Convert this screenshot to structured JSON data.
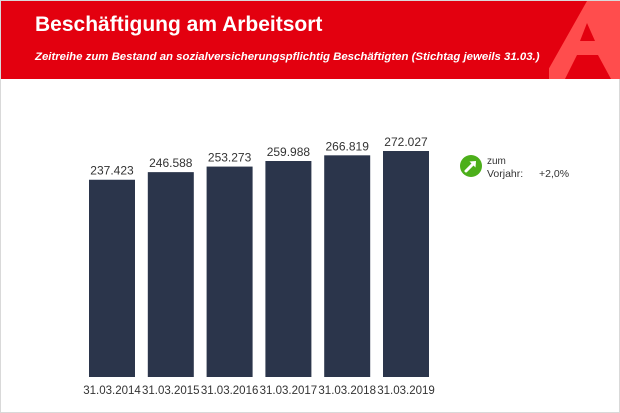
{
  "header": {
    "title": "Beschäftigung am Arbeitsort",
    "subtitle": "Zeitreihe zum Bestand an sozialversicherungspflichtig Beschäftigten (Stichtag jeweils 31.03.)"
  },
  "indicator": {
    "icon": "up-right-arrow-icon",
    "line1": "zum",
    "line2": "Vorjahr:",
    "value": "+2,0%",
    "color": "#4caf1a"
  },
  "colors": {
    "header": "#e3000f",
    "bar": "#2b354b"
  },
  "chart_data": {
    "type": "bar",
    "title": "Beschäftigung am Arbeitsort",
    "subtitle": "Zeitreihe zum Bestand an sozialversicherungspflichtig Beschäftigten (Stichtag jeweils 31.03.)",
    "categories": [
      "31.03.2014",
      "31.03.2015",
      "31.03.2016",
      "31.03.2017",
      "31.03.2018",
      "31.03.2019"
    ],
    "values": [
      237423,
      246588,
      253273,
      259988,
      266819,
      272027
    ],
    "value_labels": [
      "237.423",
      "246.588",
      "253.273",
      "259.988",
      "266.819",
      "272.027"
    ],
    "ylim": [
      0,
      272027
    ],
    "grid": false,
    "legend": "none"
  }
}
